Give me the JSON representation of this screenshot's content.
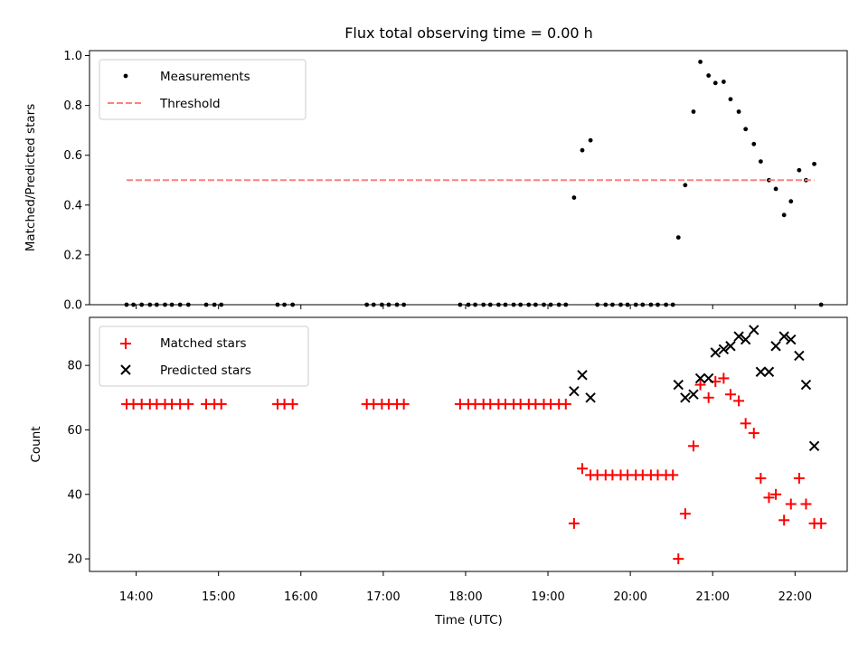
{
  "title": "Flux total observing time = 0.00 h",
  "colors": {
    "measurement": "#000000",
    "threshold": "#ff7f7f",
    "matched": "#ff0000",
    "predicted": "#000000",
    "frame": "#000000"
  },
  "chart_data": [
    {
      "type": "scatter",
      "panel": "top",
      "ylabel": "Matched/Predicted stars",
      "xlabel": "",
      "ylim": [
        0,
        1.02
      ],
      "xlim": [
        "13:26",
        "22:38"
      ],
      "yticks": [
        "0.0",
        "0.2",
        "0.4",
        "0.6",
        "0.8",
        "1.0"
      ],
      "legend_position": "top-left",
      "series": [
        {
          "name": "Measurements",
          "marker": "dot",
          "points": [
            [
              "13:53",
              0
            ],
            [
              "13:58",
              0
            ],
            [
              "14:04",
              0
            ],
            [
              "14:10",
              0
            ],
            [
              "14:15",
              0
            ],
            [
              "14:21",
              0
            ],
            [
              "14:26",
              0
            ],
            [
              "14:32",
              0
            ],
            [
              "14:38",
              0
            ],
            [
              "14:51",
              0
            ],
            [
              "14:57",
              0
            ],
            [
              "15:02",
              0
            ],
            [
              "15:43",
              0
            ],
            [
              "15:48",
              0
            ],
            [
              "15:54",
              0
            ],
            [
              "16:48",
              0
            ],
            [
              "16:53",
              0
            ],
            [
              "16:59",
              0
            ],
            [
              "17:04",
              0
            ],
            [
              "17:10",
              0
            ],
            [
              "17:15",
              0
            ],
            [
              "17:56",
              0
            ],
            [
              "18:02",
              0
            ],
            [
              "18:07",
              0
            ],
            [
              "18:13",
              0
            ],
            [
              "18:18",
              0
            ],
            [
              "18:24",
              0
            ],
            [
              "18:29",
              0
            ],
            [
              "18:35",
              0
            ],
            [
              "18:40",
              0
            ],
            [
              "18:46",
              0
            ],
            [
              "18:51",
              0
            ],
            [
              "18:57",
              0
            ],
            [
              "19:02",
              0
            ],
            [
              "19:08",
              0
            ],
            [
              "19:13",
              0
            ],
            [
              "19:36",
              0
            ],
            [
              "19:42",
              0
            ],
            [
              "19:47",
              0
            ],
            [
              "19:53",
              0
            ],
            [
              "19:58",
              0
            ],
            [
              "20:04",
              0
            ],
            [
              "20:09",
              0
            ],
            [
              "20:15",
              0
            ],
            [
              "20:20",
              0
            ],
            [
              "20:26",
              0
            ],
            [
              "20:31",
              0
            ],
            [
              "19:19",
              0.43
            ],
            [
              "19:25",
              0.62
            ],
            [
              "19:31",
              0.66
            ],
            [
              "20:35",
              0.27
            ],
            [
              "20:40",
              0.48
            ],
            [
              "20:46",
              0.775
            ],
            [
              "20:51",
              0.975
            ],
            [
              "20:57",
              0.92
            ],
            [
              "21:02",
              0.89
            ],
            [
              "21:08",
              0.895
            ],
            [
              "21:13",
              0.825
            ],
            [
              "21:19",
              0.775
            ],
            [
              "21:24",
              0.705
            ],
            [
              "21:30",
              0.645
            ],
            [
              "21:35",
              0.575
            ],
            [
              "21:41",
              0.5
            ],
            [
              "21:46",
              0.465
            ],
            [
              "21:52",
              0.36
            ],
            [
              "21:57",
              0.415
            ],
            [
              "22:03",
              0.54
            ],
            [
              "22:08",
              0.5
            ],
            [
              "22:14",
              0.565
            ],
            [
              "22:19",
              0
            ]
          ]
        },
        {
          "name": "Threshold",
          "marker": "dashed-line",
          "points": [
            [
              "13:53",
              0.5
            ],
            [
              "22:14",
              0.5
            ]
          ]
        }
      ]
    },
    {
      "type": "scatter",
      "panel": "bottom",
      "ylabel": "Count",
      "xlabel": "Time (UTC)",
      "ylim": [
        16.1,
        94.9
      ],
      "xlim": [
        "13:26",
        "22:38"
      ],
      "yticks": [
        "20",
        "40",
        "60",
        "80"
      ],
      "xticks": [
        "14:00",
        "15:00",
        "16:00",
        "17:00",
        "18:00",
        "19:00",
        "20:00",
        "21:00",
        "22:00"
      ],
      "legend_position": "top-left",
      "series": [
        {
          "name": "Matched stars",
          "marker": "plus",
          "points": [
            [
              "13:53",
              68
            ],
            [
              "13:58",
              68
            ],
            [
              "14:04",
              68
            ],
            [
              "14:10",
              68
            ],
            [
              "14:15",
              68
            ],
            [
              "14:21",
              68
            ],
            [
              "14:26",
              68
            ],
            [
              "14:32",
              68
            ],
            [
              "14:38",
              68
            ],
            [
              "14:51",
              68
            ],
            [
              "14:57",
              68
            ],
            [
              "15:02",
              68
            ],
            [
              "15:43",
              68
            ],
            [
              "15:48",
              68
            ],
            [
              "15:54",
              68
            ],
            [
              "16:48",
              68
            ],
            [
              "16:53",
              68
            ],
            [
              "16:59",
              68
            ],
            [
              "17:04",
              68
            ],
            [
              "17:10",
              68
            ],
            [
              "17:15",
              68
            ],
            [
              "17:56",
              68
            ],
            [
              "18:02",
              68
            ],
            [
              "18:07",
              68
            ],
            [
              "18:13",
              68
            ],
            [
              "18:18",
              68
            ],
            [
              "18:24",
              68
            ],
            [
              "18:29",
              68
            ],
            [
              "18:35",
              68
            ],
            [
              "18:40",
              68
            ],
            [
              "18:46",
              68
            ],
            [
              "18:51",
              68
            ],
            [
              "18:57",
              68
            ],
            [
              "19:02",
              68
            ],
            [
              "19:08",
              68
            ],
            [
              "19:13",
              68
            ],
            [
              "19:19",
              31
            ],
            [
              "19:25",
              48
            ],
            [
              "19:31",
              46
            ],
            [
              "19:36",
              46
            ],
            [
              "19:42",
              46
            ],
            [
              "19:47",
              46
            ],
            [
              "19:53",
              46
            ],
            [
              "19:58",
              46
            ],
            [
              "20:04",
              46
            ],
            [
              "20:09",
              46
            ],
            [
              "20:15",
              46
            ],
            [
              "20:20",
              46
            ],
            [
              "20:26",
              46
            ],
            [
              "20:31",
              46
            ],
            [
              "20:35",
              20
            ],
            [
              "20:40",
              34
            ],
            [
              "20:46",
              55
            ],
            [
              "20:51",
              74
            ],
            [
              "20:57",
              70
            ],
            [
              "21:02",
              75
            ],
            [
              "21:08",
              76
            ],
            [
              "21:13",
              71
            ],
            [
              "21:19",
              69
            ],
            [
              "21:24",
              62
            ],
            [
              "21:30",
              59
            ],
            [
              "21:35",
              45
            ],
            [
              "21:41",
              39
            ],
            [
              "21:46",
              40
            ],
            [
              "21:52",
              32
            ],
            [
              "21:57",
              37
            ],
            [
              "22:03",
              45
            ],
            [
              "22:08",
              37
            ],
            [
              "22:14",
              31
            ],
            [
              "22:19",
              31
            ]
          ]
        },
        {
          "name": "Predicted stars",
          "marker": "x",
          "points": [
            [
              "19:19",
              72
            ],
            [
              "19:25",
              77
            ],
            [
              "19:31",
              70
            ],
            [
              "20:35",
              74
            ],
            [
              "20:40",
              70
            ],
            [
              "20:46",
              71
            ],
            [
              "20:51",
              76
            ],
            [
              "20:57",
              76
            ],
            [
              "21:02",
              84
            ],
            [
              "21:08",
              85
            ],
            [
              "21:13",
              86
            ],
            [
              "21:19",
              89
            ],
            [
              "21:24",
              88
            ],
            [
              "21:30",
              91
            ],
            [
              "21:35",
              78
            ],
            [
              "21:41",
              78
            ],
            [
              "21:46",
              86
            ],
            [
              "21:52",
              89
            ],
            [
              "21:57",
              88
            ],
            [
              "22:03",
              83
            ],
            [
              "22:08",
              74
            ],
            [
              "22:14",
              55
            ]
          ]
        }
      ]
    }
  ]
}
